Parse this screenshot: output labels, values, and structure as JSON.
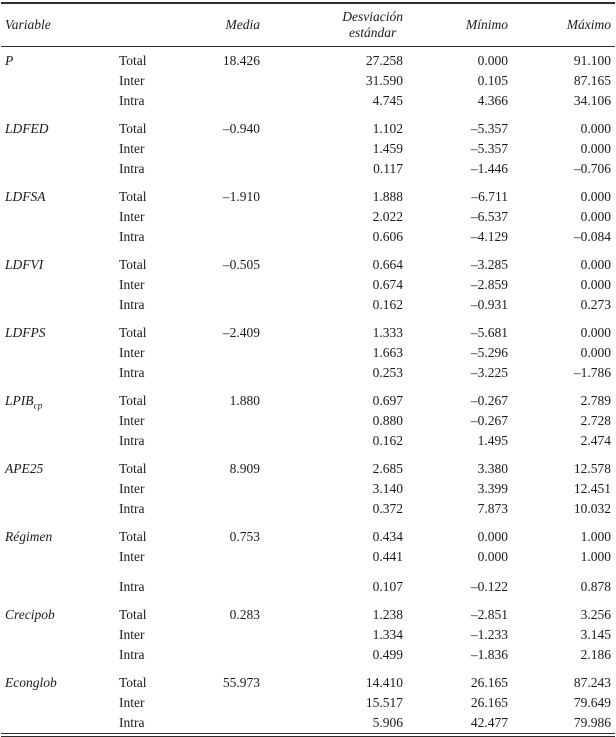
{
  "header": {
    "variable": "Variable",
    "media": "Media",
    "sd_line1": "Desviación",
    "sd_line2": "estándar",
    "minimo": "Mínimo",
    "maximo": "Máximo"
  },
  "groups": [
    {
      "name": "P",
      "subscript": "",
      "rows": [
        {
          "label": "Total",
          "media": "18.426",
          "sd": "27.258",
          "min": "0.000",
          "max": "91.100"
        },
        {
          "label": "Inter",
          "media": "",
          "sd": "31.590",
          "min": "0.105",
          "max": "87.165"
        },
        {
          "label": "Intra",
          "media": "",
          "sd": "4.745",
          "min": "4.366",
          "max": "34.106"
        }
      ]
    },
    {
      "name": "LDFED",
      "subscript": "",
      "rows": [
        {
          "label": "Total",
          "media": "–0.940",
          "sd": "1.102",
          "min": "–5.357",
          "max": "0.000"
        },
        {
          "label": "Inter",
          "media": "",
          "sd": "1.459",
          "min": "–5.357",
          "max": "0.000"
        },
        {
          "label": "Intra",
          "media": "",
          "sd": "0.117",
          "min": "–1.446",
          "max": "–0.706"
        }
      ]
    },
    {
      "name": "LDFSA",
      "subscript": "",
      "rows": [
        {
          "label": "Total",
          "media": "–1.910",
          "sd": "1.888",
          "min": "–6.711",
          "max": "0.000"
        },
        {
          "label": "Inter",
          "media": "",
          "sd": "2.022",
          "min": "–6.537",
          "max": "0.000"
        },
        {
          "label": "Intra",
          "media": "",
          "sd": "0.606",
          "min": "–4.129",
          "max": "–0.084"
        }
      ]
    },
    {
      "name": "LDFVI",
      "subscript": "",
      "rows": [
        {
          "label": "Total",
          "media": "–0.505",
          "sd": "0.664",
          "min": "–3.285",
          "max": "0.000"
        },
        {
          "label": "Inter",
          "media": "",
          "sd": "0.674",
          "min": "–2.859",
          "max": "0.000"
        },
        {
          "label": "Intra",
          "media": "",
          "sd": "0.162",
          "min": "–0.931",
          "max": "0.273"
        }
      ]
    },
    {
      "name": "LDFPS",
      "subscript": "",
      "rows": [
        {
          "label": "Total",
          "media": "–2.409",
          "sd": "1.333",
          "min": "–5.681",
          "max": "0.000"
        },
        {
          "label": "Inter",
          "media": "",
          "sd": "1.663",
          "min": "–5.296",
          "max": "0.000"
        },
        {
          "label": "Intra",
          "media": "",
          "sd": "0.253",
          "min": "–3.225",
          "max": "–1.786"
        }
      ]
    },
    {
      "name": "LPIB",
      "subscript": "cp",
      "rows": [
        {
          "label": "Total",
          "media": "1.880",
          "sd": "0.697",
          "min": "–0.267",
          "max": "2.789"
        },
        {
          "label": "Inter",
          "media": "",
          "sd": "0.880",
          "min": "–0.267",
          "max": "2.728"
        },
        {
          "label": "Intra",
          "media": "",
          "sd": "0.162",
          "min": "1.495",
          "max": "2.474"
        }
      ]
    },
    {
      "name": "APE25",
      "subscript": "",
      "rows": [
        {
          "label": "Total",
          "media": "8.909",
          "sd": "2.685",
          "min": "3.380",
          "max": "12.578"
        },
        {
          "label": "Inter",
          "media": "",
          "sd": "3.140",
          "min": "3.399",
          "max": "12.451"
        },
        {
          "label": "Intra",
          "media": "",
          "sd": "0.372",
          "min": "7.873",
          "max": "10.032"
        }
      ]
    },
    {
      "name": "Régimen",
      "subscript": "",
      "rows": [
        {
          "label": "Total",
          "media": "0.753",
          "sd": "0.434",
          "min": "0.000",
          "max": "1.000"
        },
        {
          "label": "Inter",
          "media": "",
          "sd": "0.441",
          "min": "0.000",
          "max": "1.000"
        },
        {
          "label": "Intra",
          "media": "",
          "sd": "0.107",
          "min": "–0.122",
          "max": "0.878",
          "extra_gap_before": true
        }
      ]
    },
    {
      "name": "Crecipob",
      "subscript": "",
      "rows": [
        {
          "label": "Total",
          "media": "0.283",
          "sd": "1.238",
          "min": "–2.851",
          "max": "3.256"
        },
        {
          "label": "Inter",
          "media": "",
          "sd": "1.334",
          "min": "–1.233",
          "max": "3.145"
        },
        {
          "label": "Intra",
          "media": "",
          "sd": "0.499",
          "min": "–1.836",
          "max": "2.186"
        }
      ]
    },
    {
      "name": "Econglob",
      "subscript": "",
      "rows": [
        {
          "label": "Total",
          "media": "55.973",
          "sd": "14.410",
          "min": "26.165",
          "max": "87.243"
        },
        {
          "label": "Inter",
          "media": "",
          "sd": "15.517",
          "min": "26.165",
          "max": "79.649"
        },
        {
          "label": "Intra",
          "media": "",
          "sd": "5.906",
          "min": "42.477",
          "max": "79.986"
        }
      ]
    }
  ]
}
